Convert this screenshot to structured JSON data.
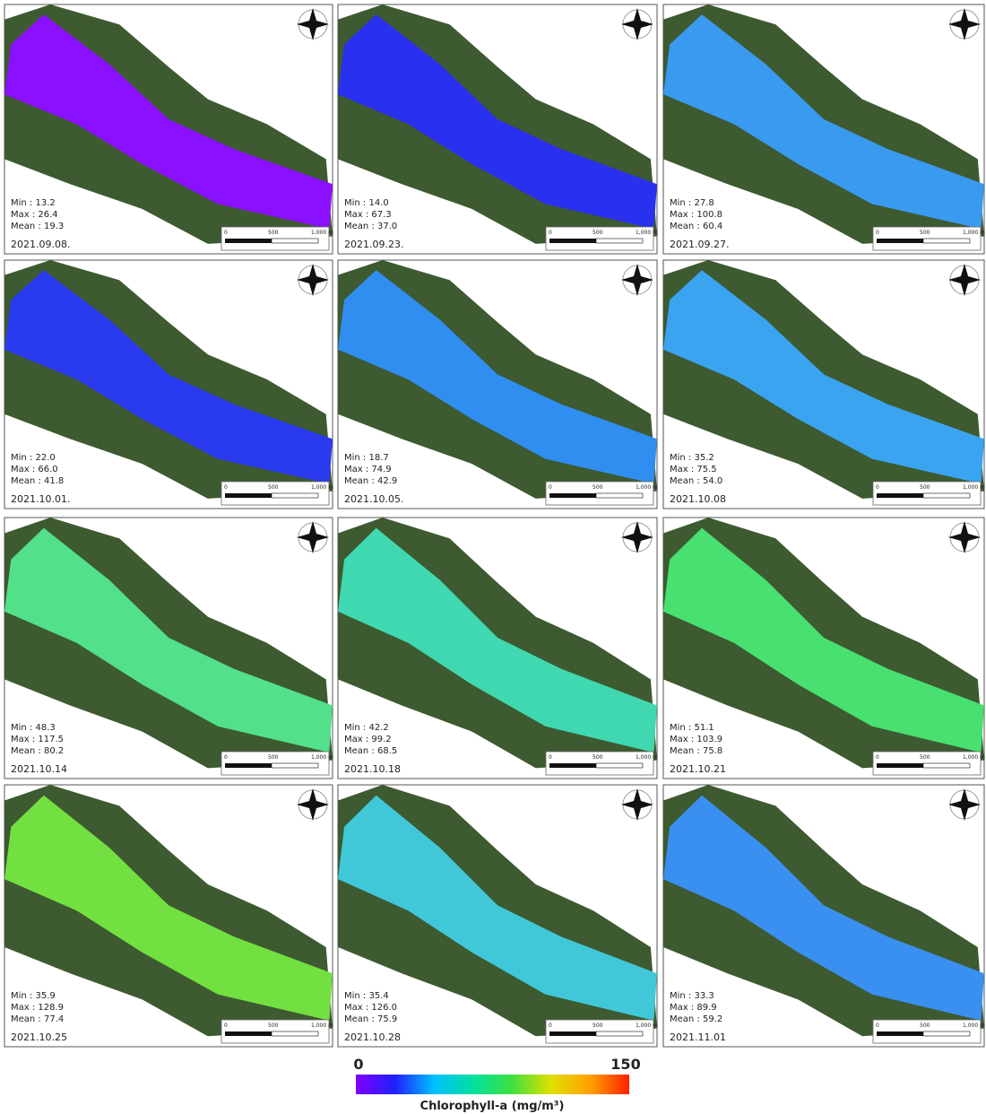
{
  "panels": [
    {
      "date": "2021.09.08.",
      "stats": [
        "Min : 13.2",
        "Max : 26.4",
        "Mean : 19.3"
      ],
      "water_color": "#8a10ff"
    },
    {
      "date": "2021.09.23.",
      "stats": [
        "Min : 14.0",
        "Max : 67.3",
        "Mean : 37.0"
      ],
      "water_color": "#2a30f0"
    },
    {
      "date": "2021.09.27.",
      "stats": [
        "Min : 27.8",
        "Max : 100.8",
        "Mean : 60.4"
      ],
      "water_color": "#3a9af0"
    },
    {
      "date": "2021.10.01.",
      "stats": [
        "Min : 22.0",
        "Max : 66.0",
        "Mean : 41.8"
      ],
      "water_color": "#2a3aee"
    },
    {
      "date": "2021.10.05.",
      "stats": [
        "Min : 18.7",
        "Max : 74.9",
        "Mean : 42.9"
      ],
      "water_color": "#2f8ef0"
    },
    {
      "date": "2021.10.08",
      "stats": [
        "Min : 35.2",
        "Max : 75.5",
        "Mean : 54.0"
      ],
      "water_color": "#3aa4f0"
    },
    {
      "date": "2021.10.14",
      "stats": [
        "Min : 48.3",
        "Max : 117.5",
        "Mean : 80.2"
      ],
      "water_color": "#52e08a"
    },
    {
      "date": "2021.10.18",
      "stats": [
        "Min : 42.2",
        "Max : 99.2",
        "Mean : 68.5"
      ],
      "water_color": "#40d8b0"
    },
    {
      "date": "2021.10.21",
      "stats": [
        "Min : 51.1",
        "Max : 103.9",
        "Mean : 75.8"
      ],
      "water_color": "#48e070"
    },
    {
      "date": "2021.10.25",
      "stats": [
        "Min : 35.9",
        "Max : 128.9",
        "Mean : 77.4"
      ],
      "water_color": "#72e040"
    },
    {
      "date": "2021.10.28",
      "stats": [
        "Min : 35.4",
        "Max : 126.0",
        "Mean : 75.9"
      ],
      "water_color": "#40c8d8"
    },
    {
      "date": "2021.11.01",
      "stats": [
        "Min : 33.3",
        "Max : 89.9",
        "Mean : 59.2"
      ],
      "water_color": "#3a90f0"
    }
  ],
  "scale_bar": {
    "labels": [
      "0",
      "500",
      "1,000 m"
    ]
  },
  "legend": {
    "min": 0,
    "max": 150,
    "title": "Chlorophyll-a (mg/m³)",
    "colors": [
      "#8000ff",
      "#2020ff",
      "#00c0ff",
      "#00e0a0",
      "#40e040",
      "#e0e000",
      "#ffa000",
      "#ff2000"
    ]
  }
}
